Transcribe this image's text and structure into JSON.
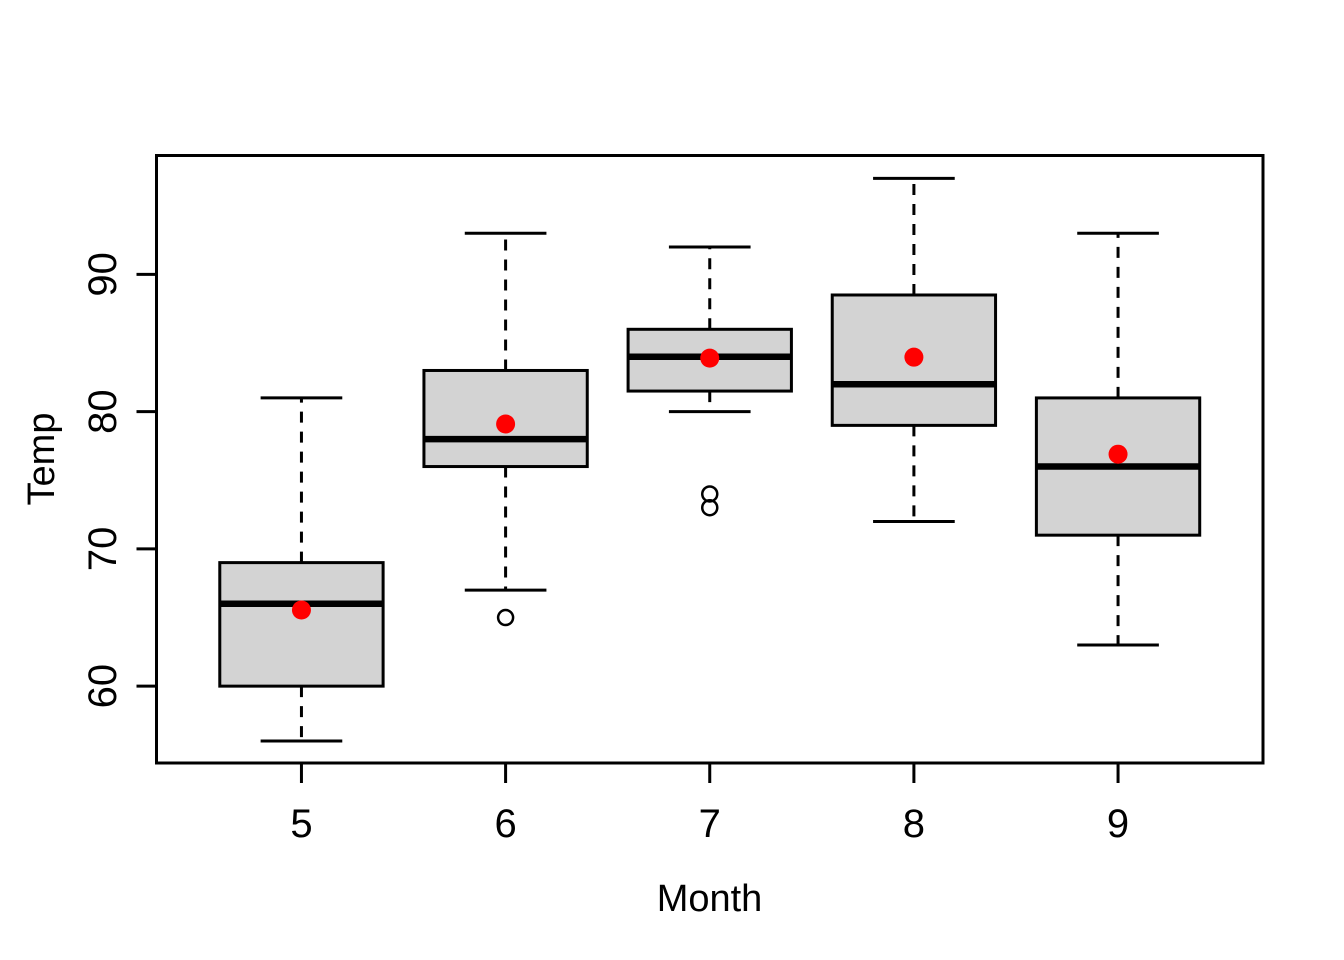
{
  "chart_data": {
    "type": "boxplot",
    "title": "",
    "xlabel": "Month",
    "ylabel": "Temp",
    "categories": [
      "5",
      "6",
      "7",
      "8",
      "9"
    ],
    "x_positions": [
      1,
      2,
      3,
      4,
      5
    ],
    "y_ticks": [
      60,
      70,
      80,
      90
    ],
    "ylim": [
      54.4,
      98.7
    ],
    "xlim": [
      0.29,
      5.71
    ],
    "grid": false,
    "legend": "none",
    "series": [
      {
        "category": "5",
        "lower_whisker": 56,
        "q1": 60,
        "median": 66,
        "q3": 69,
        "upper_whisker": 81,
        "mean": 65.55,
        "outliers": []
      },
      {
        "category": "6",
        "lower_whisker": 67,
        "q1": 76,
        "median": 78,
        "q3": 83,
        "upper_whisker": 93,
        "mean": 79.1,
        "outliers": [
          65
        ]
      },
      {
        "category": "7",
        "lower_whisker": 80,
        "q1": 81.5,
        "median": 84,
        "q3": 86,
        "upper_whisker": 92,
        "mean": 83.9,
        "outliers": [
          74,
          73
        ]
      },
      {
        "category": "8",
        "lower_whisker": 72,
        "q1": 79,
        "median": 82,
        "q3": 88.5,
        "upper_whisker": 97,
        "mean": 83.97,
        "outliers": []
      },
      {
        "category": "9",
        "lower_whisker": 63,
        "q1": 71,
        "median": 76,
        "q3": 81,
        "upper_whisker": 93,
        "mean": 76.9,
        "outliers": []
      }
    ],
    "colors": {
      "box_fill": "#d3d3d3",
      "box_border": "#000000",
      "median": "#000000",
      "whisker": "#000000",
      "staple": "#000000",
      "outlier_stroke": "#000000",
      "mean_point": "#ff0000",
      "axis": "#000000",
      "text": "#000000",
      "background": "#ffffff"
    }
  }
}
